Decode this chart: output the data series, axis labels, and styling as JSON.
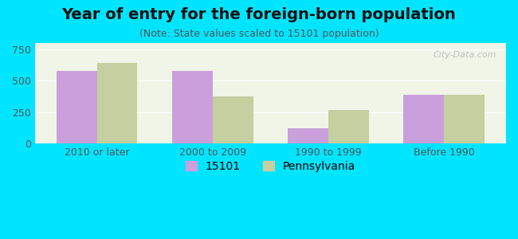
{
  "title": "Year of entry for the foreign-born population",
  "subtitle": "(Note: State values scaled to 15101 population)",
  "categories": [
    "2010 or later",
    "2000 to 2009",
    "1990 to 1999",
    "Before 1990"
  ],
  "values_15101": [
    580,
    580,
    120,
    390
  ],
  "values_pa": [
    640,
    375,
    270,
    385
  ],
  "color_15101": "#c9a0dc",
  "color_pa": "#c5cf9f",
  "background_outer": "#00e5ff",
  "background_inner": "#f0f5e8",
  "ylim": [
    0,
    800
  ],
  "yticks": [
    0,
    250,
    500,
    750
  ],
  "legend_label_15101": "15101",
  "legend_label_pa": "Pennsylvania",
  "bar_width": 0.35,
  "title_fontsize": 14,
  "subtitle_fontsize": 9,
  "tick_fontsize": 9,
  "legend_fontsize": 10
}
